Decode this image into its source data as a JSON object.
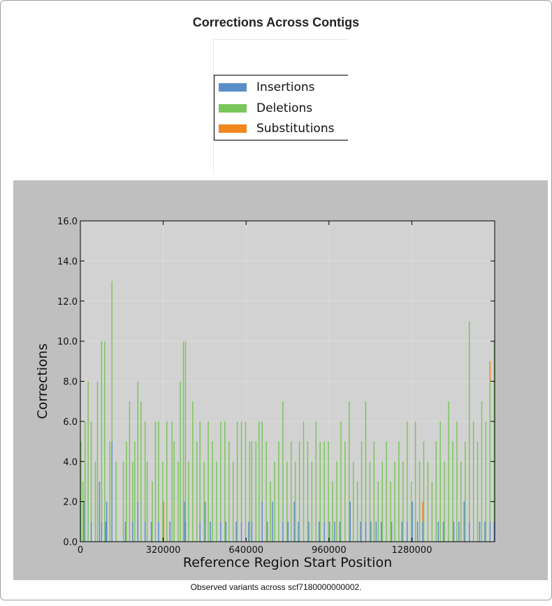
{
  "figure": {
    "title": "Corrections Across Contigs",
    "caption": "Observed variants across scf7180000000002."
  },
  "legend": [
    {
      "label": "Insertions",
      "color": "#5a8ec8"
    },
    {
      "label": "Deletions",
      "color": "#7ac65a"
    },
    {
      "label": "Substitutions",
      "color": "#f0871e"
    }
  ],
  "chart_data": {
    "type": "bar",
    "title": "Corrections Across Contigs",
    "xlabel": "Reference Region Start Position",
    "ylabel": "Corrections",
    "xlim": [
      0,
      1600000
    ],
    "ylim": [
      0,
      16
    ],
    "xticks": [
      0,
      320000,
      640000,
      960000,
      1280000
    ],
    "xtick_labels": [
      "0",
      "320000",
      "640000",
      "960000",
      "1280000"
    ],
    "yticks": [
      0,
      2,
      4,
      6,
      8,
      10,
      12,
      14,
      16
    ],
    "ytick_labels": [
      "0.0",
      "2.0",
      "4.0",
      "6.0",
      "8.0",
      "10.0",
      "12.0",
      "14.0",
      "16.0"
    ],
    "grid": true,
    "stacked": true,
    "bin_width": 4000,
    "series": [
      {
        "name": "Insertions",
        "color": "#5a8ec8",
        "x": [
          12000,
          40000,
          72000,
          80000,
          96000,
          100000,
          120000,
          172000,
          200000,
          220000,
          248000,
          272000,
          300000,
          344000,
          400000,
          404000,
          460000,
          480000,
          500000,
          540000,
          560000,
          600000,
          620000,
          648000,
          660000,
          700000,
          720000,
          740000,
          780000,
          800000,
          824000,
          840000,
          880000,
          920000,
          940000,
          960000,
          980000,
          1000000,
          1040000,
          1080000,
          1100000,
          1120000,
          1140000,
          1160000,
          1200000,
          1240000,
          1260000,
          1280000,
          1300000,
          1320000,
          1380000,
          1400000,
          1440000,
          1460000,
          1480000,
          1500000,
          1540000,
          1560000,
          1580000,
          1596000
        ],
        "values": [
          2,
          1,
          3,
          1,
          1,
          2,
          5,
          1,
          1,
          2,
          1,
          1,
          1,
          1,
          2,
          1,
          1,
          2,
          1,
          1,
          1,
          1,
          1,
          1,
          1,
          2,
          1,
          2,
          1,
          1,
          2,
          1,
          1,
          1,
          1,
          1,
          1,
          1,
          2,
          1,
          1,
          1,
          1,
          1,
          1,
          1,
          1,
          2,
          1,
          1,
          1,
          1,
          1,
          1,
          2,
          1,
          1,
          1,
          1,
          1
        ]
      },
      {
        "name": "Deletions",
        "color": "#7ac65a",
        "x": [
          0,
          8000,
          16000,
          28000,
          40000,
          56000,
          64000,
          80000,
          92000,
          112000,
          120000,
          136000,
          164000,
          176000,
          188000,
          200000,
          208000,
          220000,
          232000,
          248000,
          256000,
          276000,
          288000,
          300000,
          316000,
          332000,
          352000,
          360000,
          376000,
          384000,
          396000,
          404000,
          416000,
          432000,
          448000,
          460000,
          476000,
          492000,
          508000,
          524000,
          540000,
          556000,
          572000,
          588000,
          604000,
          620000,
          636000,
          652000,
          660000,
          676000,
          688000,
          700000,
          716000,
          732000,
          748000,
          764000,
          780000,
          796000,
          812000,
          828000,
          844000,
          860000,
          876000,
          892000,
          908000,
          924000,
          940000,
          956000,
          972000,
          988000,
          1004000,
          1020000,
          1036000,
          1052000,
          1068000,
          1084000,
          1100000,
          1116000,
          1132000,
          1148000,
          1164000,
          1180000,
          1196000,
          1212000,
          1228000,
          1244000,
          1260000,
          1276000,
          1292000,
          1308000,
          1324000,
          1340000,
          1356000,
          1372000,
          1388000,
          1404000,
          1420000,
          1436000,
          1452000,
          1468000,
          1484000,
          1500000,
          1516000,
          1532000,
          1548000,
          1564000,
          1580000,
          1596000
        ],
        "values": [
          5,
          3,
          6,
          8,
          5,
          4,
          8,
          9,
          10,
          5,
          8,
          4,
          4,
          5,
          7,
          3,
          5,
          6,
          7,
          5,
          4,
          3,
          6,
          5,
          4,
          6,
          6,
          5,
          4,
          8,
          10,
          9,
          4,
          7,
          5,
          5,
          4,
          6,
          5,
          4,
          5,
          6,
          5,
          4,
          6,
          5,
          6,
          5,
          4,
          5,
          6,
          4,
          5,
          3,
          4,
          5,
          6,
          4,
          5,
          4,
          5,
          6,
          5,
          4,
          6,
          5,
          4,
          5,
          3,
          4,
          6,
          5,
          7,
          4,
          3,
          5,
          6,
          4,
          5,
          3,
          4,
          5,
          3,
          4,
          5,
          4,
          5,
          3,
          6,
          4,
          5,
          4,
          3,
          5,
          6,
          4,
          7,
          5,
          6,
          4,
          5,
          10,
          6,
          5,
          7,
          6,
          7,
          9
        ]
      },
      {
        "name": "Substitutions",
        "color": "#f0871e",
        "x": [
          320000,
          1320000,
          1580000
        ],
        "values": [
          2,
          1,
          1
        ]
      }
    ]
  }
}
